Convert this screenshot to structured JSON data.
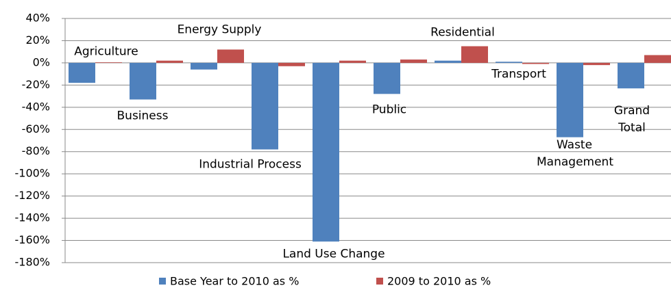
{
  "chart_data": {
    "type": "bar",
    "categories": [
      "Agriculture",
      "Business",
      "Energy Supply",
      "Industrial Process",
      "Land Use Change",
      "Public",
      "Residential",
      "Transport",
      "Waste Management",
      "Grand Total"
    ],
    "series": [
      {
        "name": "Base Year to 2010 as %",
        "color": "#4f81bd",
        "values": [
          -18,
          -33,
          -6,
          -78,
          -161,
          -28,
          2,
          1,
          -67,
          -23
        ]
      },
      {
        "name": "2009 to 2010 as %",
        "color": "#c0504d",
        "values": [
          0.5,
          2,
          12,
          -3,
          2,
          3,
          15,
          -1,
          -2,
          7
        ]
      }
    ],
    "ylim": [
      -180,
      40
    ],
    "yticks": [
      {
        "value": 40,
        "label": "40%"
      },
      {
        "value": 20,
        "label": "20%"
      },
      {
        "value": 0,
        "label": "0%"
      },
      {
        "value": -20,
        "label": "-20%"
      },
      {
        "value": -40,
        "label": "-40%"
      },
      {
        "value": -60,
        "label": "-60%"
      },
      {
        "value": -80,
        "label": "-80%"
      },
      {
        "value": -100,
        "label": "-100%"
      },
      {
        "value": -120,
        "label": "-120%"
      },
      {
        "value": -140,
        "label": "-140%"
      },
      {
        "value": -160,
        "label": "-160%"
      },
      {
        "value": -180,
        "label": "-180%"
      }
    ],
    "grid": true,
    "legend": "bottom"
  }
}
